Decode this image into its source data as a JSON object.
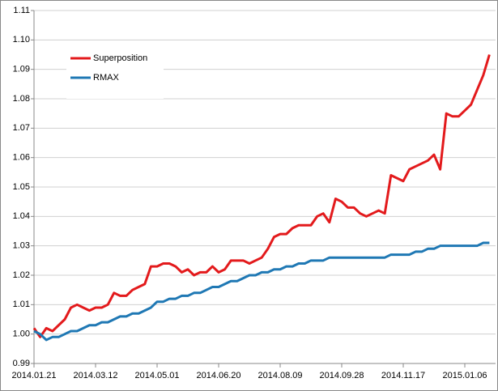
{
  "chart_data": {
    "type": "line",
    "categories": [
      "2014.01.21",
      null,
      null,
      null,
      null,
      null,
      null,
      null,
      null,
      null,
      "2014.03.12",
      null,
      null,
      null,
      null,
      null,
      null,
      null,
      null,
      null,
      "2014.05.01",
      null,
      null,
      null,
      null,
      null,
      null,
      null,
      null,
      null,
      "2014.06.20",
      null,
      null,
      null,
      null,
      null,
      null,
      null,
      null,
      null,
      "2014.08.09",
      null,
      null,
      null,
      null,
      null,
      null,
      null,
      null,
      null,
      "2014.09.28",
      null,
      null,
      null,
      null,
      null,
      null,
      null,
      null,
      null,
      "2014.11.17",
      null,
      null,
      null,
      null,
      null,
      null,
      null,
      null,
      null,
      "2015.01.06",
      null,
      null,
      null,
      null
    ],
    "series": [
      {
        "name": "Superposition",
        "color": "#e31a1c",
        "values": [
          1.002,
          0.999,
          1.002,
          1.001,
          1.003,
          1.005,
          1.009,
          1.01,
          1.009,
          1.008,
          1.009,
          1.009,
          1.01,
          1.014,
          1.013,
          1.013,
          1.015,
          1.016,
          1.017,
          1.023,
          1.023,
          1.024,
          1.024,
          1.023,
          1.021,
          1.022,
          1.02,
          1.021,
          1.021,
          1.023,
          1.021,
          1.022,
          1.025,
          1.025,
          1.025,
          1.024,
          1.025,
          1.026,
          1.029,
          1.033,
          1.034,
          1.034,
          1.036,
          1.037,
          1.037,
          1.037,
          1.04,
          1.041,
          1.038,
          1.046,
          1.045,
          1.043,
          1.043,
          1.041,
          1.04,
          1.041,
          1.042,
          1.041,
          1.054,
          1.053,
          1.052,
          1.056,
          1.057,
          1.058,
          1.059,
          1.061,
          1.056,
          1.075,
          1.074,
          1.074,
          1.076,
          1.078,
          1.083,
          1.088,
          1.095
        ]
      },
      {
        "name": "RMAX",
        "color": "#1f78b4",
        "values": [
          1.001,
          1.0,
          0.998,
          0.999,
          0.999,
          1.0,
          1.001,
          1.001,
          1.002,
          1.003,
          1.003,
          1.004,
          1.004,
          1.005,
          1.006,
          1.006,
          1.007,
          1.007,
          1.008,
          1.009,
          1.011,
          1.011,
          1.012,
          1.012,
          1.013,
          1.013,
          1.014,
          1.014,
          1.015,
          1.016,
          1.016,
          1.017,
          1.018,
          1.018,
          1.019,
          1.02,
          1.02,
          1.021,
          1.021,
          1.022,
          1.022,
          1.023,
          1.023,
          1.024,
          1.024,
          1.025,
          1.025,
          1.025,
          1.026,
          1.026,
          1.026,
          1.026,
          1.026,
          1.026,
          1.026,
          1.026,
          1.026,
          1.026,
          1.027,
          1.027,
          1.027,
          1.027,
          1.028,
          1.028,
          1.029,
          1.029,
          1.03,
          1.03,
          1.03,
          1.03,
          1.03,
          1.03,
          1.03,
          1.031,
          1.031
        ]
      }
    ],
    "ylim": [
      0.99,
      1.11
    ],
    "yticks": [
      0.99,
      {
        "value": 1,
        "label": "1.00"
      },
      1.01,
      1.02,
      1.03,
      1.04,
      1.05,
      1.06,
      1.07,
      1.08,
      1.09,
      {
        "value": 1.1,
        "label": "1.10"
      },
      1.11
    ],
    "grid": true,
    "legend": "upper-left"
  }
}
